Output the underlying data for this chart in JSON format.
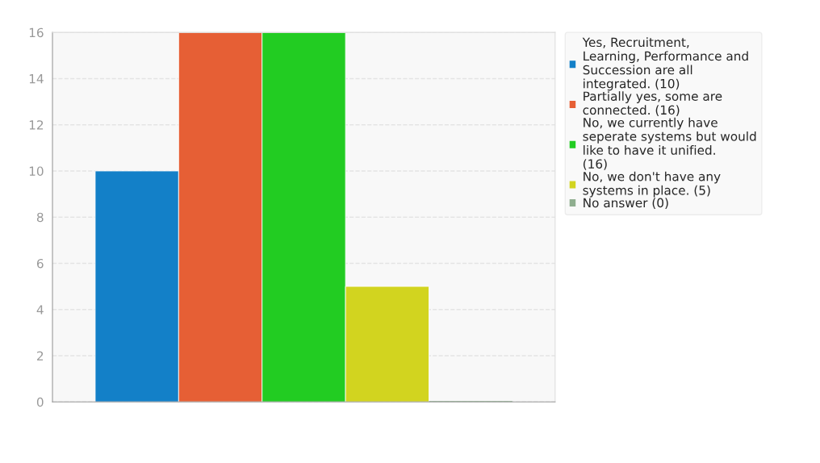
{
  "chart_data": {
    "type": "bar",
    "categories": [
      null
    ],
    "series": [
      {
        "name": "Yes, Recruitment, Learning, Performance and Succession are all integrated. (10)",
        "color": "#1380c8",
        "values": [
          10
        ]
      },
      {
        "name": "Partially yes, some are connected. (16)",
        "color": "#e65f35",
        "values": [
          16
        ]
      },
      {
        "name": "No, we currently have seperate systems but would like to have it unified. (16)",
        "color": "#22cc22",
        "values": [
          16
        ]
      },
      {
        "name": "No, we don't have any systems in place. (5)",
        "color": "#d2d41f",
        "values": [
          5
        ]
      },
      {
        "name": "No answer (0)",
        "color": "#8fae8f",
        "values": [
          0
        ]
      }
    ],
    "ylim": [
      0,
      16
    ],
    "yticks": [
      0,
      2,
      4,
      6,
      8,
      10,
      12,
      14,
      16
    ],
    "grid": "y",
    "legend": "right"
  }
}
